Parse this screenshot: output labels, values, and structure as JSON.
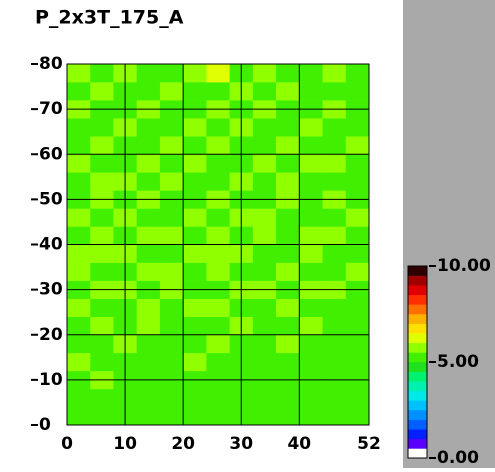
{
  "chart_data": {
    "type": "heatmap",
    "title": "P_2x3T_175_A",
    "xbins": [
      0,
      4,
      8,
      12,
      16,
      20,
      24,
      28,
      32,
      36,
      40,
      44,
      48,
      52
    ],
    "ybins": [
      0,
      4,
      8,
      12,
      16,
      20,
      24,
      28,
      32,
      36,
      40,
      44,
      48,
      52,
      56,
      60,
      64,
      68,
      72,
      76,
      80
    ],
    "values": [
      [
        5.1,
        5.0,
        5.4,
        5.3,
        5.0,
        5.2,
        5.1,
        5.3,
        5.0,
        5.2,
        5.4,
        5.1,
        5.0
      ],
      [
        5.2,
        5.1,
        5.0,
        5.3,
        5.1,
        5.0,
        5.2,
        5.0,
        5.1,
        5.3,
        5.0,
        5.2,
        5.1
      ],
      [
        5.3,
        5.5,
        5.2,
        5.1,
        5.0,
        5.3,
        5.4,
        5.2,
        5.0,
        5.1,
        5.2,
        5.3,
        5.0
      ],
      [
        5.6,
        5.4,
        5.3,
        5.2,
        5.4,
        5.5,
        5.3,
        5.1,
        5.4,
        5.3,
        5.2,
        5.4,
        5.1
      ],
      [
        5.4,
        5.3,
        5.5,
        5.4,
        5.2,
        5.3,
        5.5,
        5.4,
        5.2,
        5.5,
        5.3,
        5.2,
        5.3
      ],
      [
        5.3,
        5.5,
        5.4,
        5.6,
        5.3,
        5.4,
        5.2,
        5.5,
        5.3,
        5.4,
        5.6,
        5.3,
        5.2
      ],
      [
        5.5,
        5.4,
        5.3,
        5.5,
        5.4,
        5.6,
        5.5,
        5.3,
        5.4,
        5.5,
        5.3,
        5.4,
        5.3
      ],
      [
        5.4,
        5.6,
        5.5,
        5.3,
        5.5,
        5.4,
        5.3,
        5.6,
        5.5,
        5.4,
        5.5,
        5.6,
        5.4
      ],
      [
        5.5,
        5.3,
        5.4,
        5.6,
        5.5,
        5.3,
        5.5,
        5.4,
        5.3,
        5.6,
        5.4,
        5.3,
        5.5
      ],
      [
        5.8,
        5.5,
        5.6,
        5.4,
        5.3,
        5.5,
        5.6,
        5.5,
        5.4,
        5.3,
        5.5,
        5.4,
        5.3
      ],
      [
        5.4,
        5.5,
        5.3,
        5.5,
        5.6,
        5.4,
        5.5,
        5.3,
        5.5,
        5.4,
        5.6,
        5.5,
        5.4
      ],
      [
        5.5,
        5.4,
        5.6,
        5.4,
        5.3,
        5.6,
        5.4,
        5.5,
        5.6,
        5.3,
        5.4,
        5.3,
        5.5
      ],
      [
        5.3,
        5.5,
        5.4,
        5.5,
        5.4,
        5.3,
        5.5,
        5.4,
        5.3,
        5.5,
        5.4,
        5.6,
        5.3
      ],
      [
        5.4,
        5.6,
        5.5,
        5.3,
        5.5,
        5.4,
        5.3,
        5.6,
        5.4,
        5.5,
        5.3,
        5.4,
        5.4
      ],
      [
        5.5,
        5.3,
        5.4,
        5.6,
        5.4,
        5.5,
        5.4,
        5.3,
        5.5,
        5.4,
        5.6,
        5.5,
        5.3
      ],
      [
        5.4,
        5.5,
        5.3,
        5.4,
        5.6,
        5.3,
        5.5,
        5.4,
        5.3,
        5.6,
        5.4,
        5.3,
        5.5
      ],
      [
        5.3,
        5.4,
        5.5,
        5.3,
        5.4,
        5.5,
        5.3,
        5.5,
        5.4,
        5.3,
        5.5,
        5.4,
        5.3
      ],
      [
        5.5,
        5.3,
        5.4,
        5.5,
        5.3,
        5.4,
        5.6,
        5.3,
        5.5,
        5.4,
        5.3,
        5.5,
        5.4
      ],
      [
        5.4,
        5.6,
        5.3,
        5.4,
        5.5,
        5.3,
        5.4,
        5.5,
        5.3,
        5.5,
        5.4,
        5.3,
        5.4
      ],
      [
        5.5,
        5.4,
        5.5,
        5.3,
        5.4,
        5.6,
        6.2,
        5.4,
        5.5,
        5.3,
        5.4,
        5.5,
        5.3
      ]
    ],
    "xlim": [
      0,
      52
    ],
    "xticks": [
      0,
      10,
      20,
      30,
      40,
      52
    ],
    "ylim": [
      0,
      80
    ],
    "yticks": [
      0,
      10,
      20,
      30,
      40,
      50,
      60,
      70,
      80
    ],
    "grid": true,
    "clim": [
      0,
      10
    ],
    "cticks": [
      {
        "value": 0,
        "label": "0.00"
      },
      {
        "value": 5,
        "label": "5.00"
      },
      {
        "value": 10,
        "label": "10.00"
      }
    ],
    "colorscale": [
      "#ffffff",
      "#5a00ff",
      "#0020ff",
      "#0060ff",
      "#0090ff",
      "#00c0ff",
      "#00e8e8",
      "#00f0b0",
      "#00f070",
      "#20e020",
      "#40f000",
      "#90ff00",
      "#e0ff00",
      "#ffe000",
      "#ffb000",
      "#ff7000",
      "#ff3000",
      "#e00000",
      "#a00000",
      "#300000"
    ]
  }
}
